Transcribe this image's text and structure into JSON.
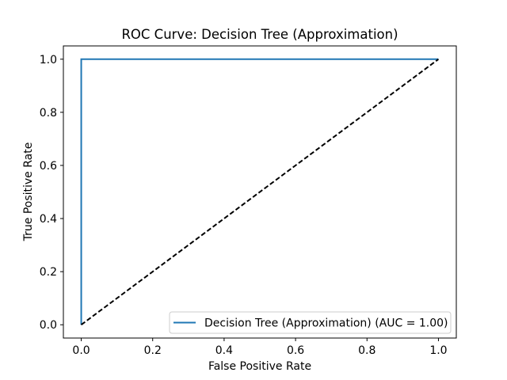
{
  "chart_data": {
    "type": "line",
    "title": "ROC Curve: Decision Tree (Approximation)",
    "xlabel": "False Positive Rate",
    "ylabel": "True Positive Rate",
    "xlim": [
      -0.05,
      1.05
    ],
    "ylim": [
      -0.05,
      1.05
    ],
    "x_ticks": [
      0.0,
      0.2,
      0.4,
      0.6,
      0.8,
      1.0
    ],
    "y_ticks": [
      0.0,
      0.2,
      0.4,
      0.6,
      0.8,
      1.0
    ],
    "x_tick_labels": [
      "0.0",
      "0.2",
      "0.4",
      "0.6",
      "0.8",
      "1.0"
    ],
    "y_tick_labels": [
      "0.0",
      "0.2",
      "0.4",
      "0.6",
      "0.8",
      "1.0"
    ],
    "grid": false,
    "legend_position": "lower-right",
    "series": [
      {
        "name": "Decision Tree (Approximation) (AUC = 1.00)",
        "color": "#1f77b4",
        "style": "solid",
        "x": [
          0.0,
          0.0,
          1.0
        ],
        "y": [
          0.0,
          1.0,
          1.0
        ]
      },
      {
        "color": "#000000",
        "style": "dashed",
        "x": [
          0.0,
          1.0
        ],
        "y": [
          0.0,
          1.0
        ]
      }
    ]
  }
}
